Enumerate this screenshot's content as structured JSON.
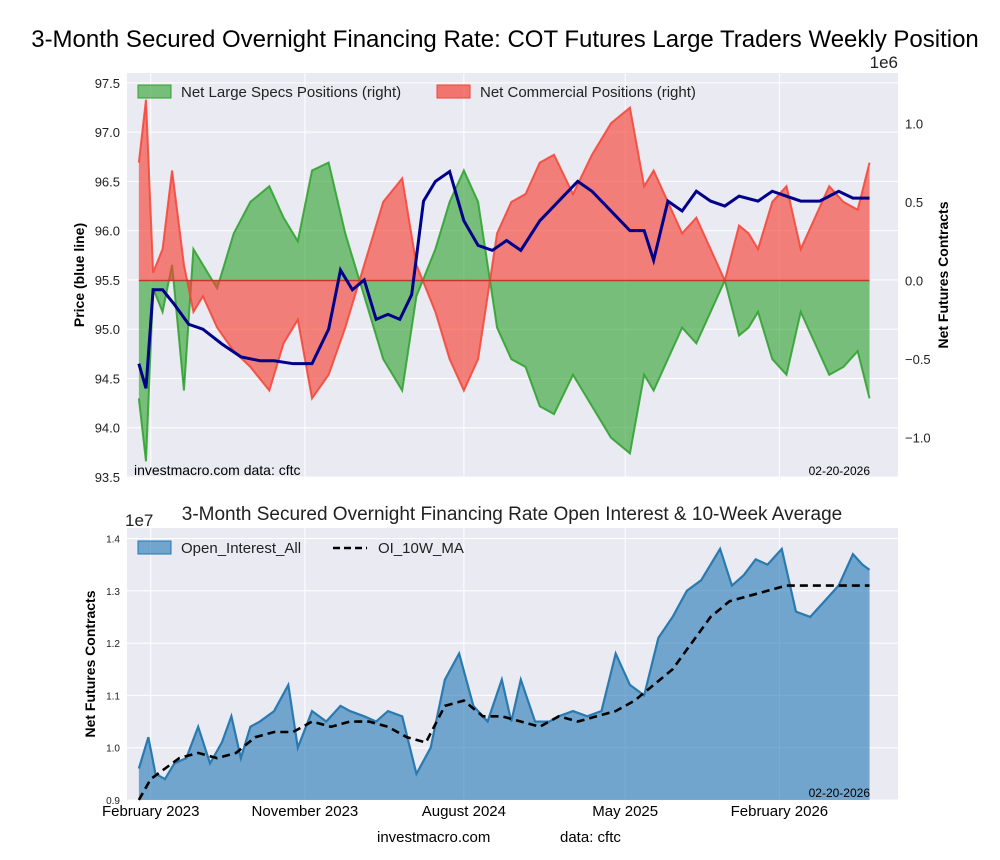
{
  "footer": {
    "site": "investmacro.com",
    "source": "data: cftc"
  },
  "chart_data": [
    {
      "type": "area",
      "title": "3-Month Secured Overnight Financing Rate: COT Futures Large Traders Weekly Position",
      "ylabel_left": "Price (blue line)",
      "ylabel_right": "Net Futures Contracts",
      "right_scale_label": "1e6",
      "ylim_left": [
        93.5,
        97.6
      ],
      "ylim_right": [
        -1.25,
        1.32
      ],
      "left_ticks": [
        "93.5",
        "94.0",
        "94.5",
        "95.0",
        "95.5",
        "96.0",
        "96.5",
        "97.0",
        "97.5"
      ],
      "right_ticks": [
        "−1.0",
        "−0.5",
        "0.0",
        "0.5",
        "1.0"
      ],
      "grid": true,
      "legend_position": "top-left",
      "watermark_left": "investmacro.com    data: cftc",
      "date_label": "02-20-2026",
      "series": [
        {
          "name": "Net Large Specs Positions (right)",
          "color": "#2ca02c",
          "x": [
            2023.05,
            2023.08,
            2023.11,
            2023.15,
            2023.19,
            2023.24,
            2023.28,
            2023.32,
            2023.38,
            2023.45,
            2023.52,
            2023.6,
            2023.66,
            2023.72,
            2023.78,
            2023.85,
            2023.92,
            2024.0,
            2024.08,
            2024.16,
            2024.22,
            2024.3,
            2024.36,
            2024.42,
            2024.48,
            2024.52,
            2024.56,
            2024.62,
            2024.68,
            2024.74,
            2024.8,
            2024.88,
            2024.96,
            2025.04,
            2025.12,
            2025.18,
            2025.22,
            2025.28,
            2025.34,
            2025.4,
            2025.46,
            2025.52,
            2025.58,
            2025.62,
            2025.66,
            2025.72,
            2025.78,
            2025.84,
            2025.9,
            2025.96,
            2026.02,
            2026.08,
            2026.13
          ],
          "values": [
            -0.75,
            -1.15,
            -0.05,
            -0.2,
            0.1,
            -0.7,
            0.2,
            0.1,
            -0.05,
            0.3,
            0.5,
            0.6,
            0.4,
            0.25,
            0.7,
            0.75,
            0.3,
            -0.1,
            -0.5,
            -0.7,
            -0.1,
            0.2,
            0.5,
            0.7,
            0.5,
            0.1,
            -0.3,
            -0.5,
            -0.55,
            -0.8,
            -0.85,
            -0.6,
            -0.8,
            -1.0,
            -1.1,
            -0.6,
            -0.7,
            -0.5,
            -0.3,
            -0.4,
            -0.2,
            0.0,
            -0.35,
            -0.3,
            -0.2,
            -0.5,
            -0.6,
            -0.2,
            -0.4,
            -0.6,
            -0.55,
            -0.45,
            -0.75
          ]
        },
        {
          "name": "Net Commercial Positions (right)",
          "color": "#f44336",
          "x": [
            2023.05,
            2023.08,
            2023.11,
            2023.15,
            2023.19,
            2023.24,
            2023.28,
            2023.32,
            2023.38,
            2023.45,
            2023.52,
            2023.6,
            2023.66,
            2023.72,
            2023.78,
            2023.85,
            2023.92,
            2024.0,
            2024.08,
            2024.16,
            2024.22,
            2024.3,
            2024.36,
            2024.42,
            2024.48,
            2024.52,
            2024.56,
            2024.62,
            2024.68,
            2024.74,
            2024.8,
            2024.88,
            2024.96,
            2025.04,
            2025.12,
            2025.18,
            2025.22,
            2025.28,
            2025.34,
            2025.4,
            2025.46,
            2025.52,
            2025.58,
            2025.62,
            2025.66,
            2025.72,
            2025.78,
            2025.84,
            2025.9,
            2025.96,
            2026.02,
            2026.08,
            2026.13
          ],
          "values": [
            0.75,
            1.15,
            0.05,
            0.2,
            0.7,
            0.1,
            -0.2,
            -0.1,
            -0.3,
            -0.45,
            -0.55,
            -0.7,
            -0.4,
            -0.25,
            -0.75,
            -0.6,
            -0.3,
            0.1,
            0.5,
            0.65,
            0.1,
            -0.2,
            -0.5,
            -0.7,
            -0.5,
            -0.1,
            0.3,
            0.5,
            0.55,
            0.75,
            0.8,
            0.55,
            0.8,
            1.0,
            1.1,
            0.6,
            0.7,
            0.5,
            0.3,
            0.4,
            0.2,
            0.0,
            0.35,
            0.3,
            0.2,
            0.5,
            0.6,
            0.2,
            0.4,
            0.6,
            0.5,
            0.45,
            0.75
          ]
        },
        {
          "name": "Price",
          "color": "#00008b",
          "x": [
            2023.05,
            2023.08,
            2023.11,
            2023.15,
            2023.2,
            2023.26,
            2023.32,
            2023.4,
            2023.48,
            2023.56,
            2023.62,
            2023.7,
            2023.78,
            2023.85,
            2023.9,
            2023.95,
            2024.0,
            2024.05,
            2024.1,
            2024.15,
            2024.2,
            2024.25,
            2024.3,
            2024.36,
            2024.42,
            2024.48,
            2024.54,
            2024.6,
            2024.66,
            2024.74,
            2024.82,
            2024.9,
            2024.96,
            2025.04,
            2025.12,
            2025.18,
            2025.22,
            2025.28,
            2025.34,
            2025.4,
            2025.46,
            2025.52,
            2025.58,
            2025.66,
            2025.72,
            2025.78,
            2025.84,
            2025.92,
            2026.0,
            2026.06,
            2026.13
          ],
          "values": [
            94.65,
            94.4,
            95.4,
            95.4,
            95.25,
            95.05,
            95.0,
            94.85,
            94.72,
            94.68,
            94.68,
            94.65,
            94.65,
            95.0,
            95.6,
            95.4,
            95.5,
            95.1,
            95.15,
            95.1,
            95.35,
            96.3,
            96.5,
            96.6,
            96.1,
            95.85,
            95.8,
            95.9,
            95.8,
            96.1,
            96.3,
            96.5,
            96.4,
            96.2,
            96.0,
            96.0,
            95.7,
            96.3,
            96.2,
            96.4,
            96.3,
            96.25,
            96.35,
            96.3,
            96.4,
            96.35,
            96.3,
            96.3,
            96.4,
            96.33,
            96.33
          ]
        }
      ]
    },
    {
      "type": "area",
      "title": "3-Month Secured Overnight Financing Rate Open Interest & 10-Week Average",
      "ylabel": "Net Futures Contracts",
      "scale_label": "1e7",
      "ylim": [
        0.9,
        1.42
      ],
      "yticks": [
        "0.9",
        "1.0",
        "1.1",
        "1.2",
        "1.3",
        "1.4"
      ],
      "xticks": [
        "February 2023",
        "November 2023",
        "August 2024",
        "May 2025",
        "February 2026"
      ],
      "grid": true,
      "legend_position": "top-left",
      "date_label": "02-20-2026",
      "series": [
        {
          "name": "Open_Interest_All",
          "color": "#1f77b4",
          "x": [
            2023.05,
            2023.09,
            2023.12,
            2023.16,
            2023.2,
            2023.25,
            2023.3,
            2023.35,
            2023.4,
            2023.44,
            2023.48,
            2023.52,
            2023.56,
            2023.62,
            2023.68,
            2023.72,
            2023.78,
            2023.84,
            2023.9,
            2023.94,
            2024.0,
            2024.05,
            2024.1,
            2024.16,
            2024.22,
            2024.28,
            2024.34,
            2024.4,
            2024.46,
            2024.52,
            2024.58,
            2024.62,
            2024.66,
            2024.72,
            2024.78,
            2024.82,
            2024.88,
            2024.94,
            2025.0,
            2025.06,
            2025.12,
            2025.18,
            2025.24,
            2025.3,
            2025.36,
            2025.42,
            2025.5,
            2025.55,
            2025.6,
            2025.65,
            2025.7,
            2025.76,
            2025.82,
            2025.88,
            2025.94,
            2026.0,
            2026.06,
            2026.1,
            2026.13
          ],
          "values": [
            0.96,
            1.02,
            0.95,
            0.94,
            0.97,
            0.98,
            1.04,
            0.97,
            1.01,
            1.06,
            0.98,
            1.04,
            1.05,
            1.07,
            1.12,
            1.0,
            1.07,
            1.05,
            1.08,
            1.07,
            1.06,
            1.05,
            1.07,
            1.06,
            0.95,
            1.0,
            1.13,
            1.18,
            1.08,
            1.05,
            1.13,
            1.05,
            1.13,
            1.05,
            1.05,
            1.06,
            1.07,
            1.06,
            1.07,
            1.18,
            1.12,
            1.1,
            1.21,
            1.25,
            1.3,
            1.32,
            1.38,
            1.31,
            1.33,
            1.36,
            1.35,
            1.38,
            1.26,
            1.25,
            1.28,
            1.31,
            1.37,
            1.35,
            1.34
          ]
        },
        {
          "name": "OI_10W_MA",
          "color": "#000000",
          "x": [
            2023.05,
            2023.1,
            2023.16,
            2023.22,
            2023.3,
            2023.38,
            2023.46,
            2023.54,
            2023.62,
            2023.7,
            2023.78,
            2023.86,
            2023.94,
            2024.02,
            2024.1,
            2024.18,
            2024.26,
            2024.34,
            2024.42,
            2024.5,
            2024.58,
            2024.66,
            2024.74,
            2024.82,
            2024.9,
            2024.98,
            2025.06,
            2025.14,
            2025.22,
            2025.3,
            2025.38,
            2025.46,
            2025.54,
            2025.62,
            2025.7,
            2025.78,
            2025.86,
            2025.94,
            2026.02,
            2026.1,
            2026.13
          ],
          "values": [
            0.9,
            0.94,
            0.96,
            0.98,
            0.99,
            0.98,
            0.99,
            1.02,
            1.03,
            1.03,
            1.05,
            1.04,
            1.05,
            1.05,
            1.04,
            1.02,
            1.01,
            1.08,
            1.09,
            1.06,
            1.06,
            1.05,
            1.04,
            1.06,
            1.05,
            1.06,
            1.07,
            1.09,
            1.12,
            1.15,
            1.2,
            1.25,
            1.28,
            1.29,
            1.3,
            1.31,
            1.31,
            1.31,
            1.31,
            1.31,
            1.31
          ]
        }
      ]
    }
  ]
}
